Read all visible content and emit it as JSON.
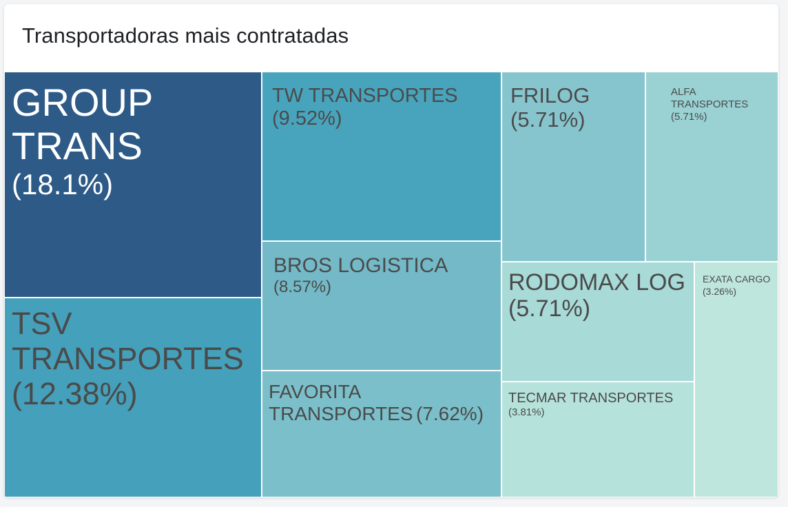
{
  "card": {
    "title": "Transportadoras mais contratadas"
  },
  "chart_data": {
    "type": "treemap",
    "title": "Transportadoras mais contratadas",
    "unit": "%",
    "items": [
      {
        "name": "GROUP TRANS",
        "percent_label": "(18.1%)",
        "value": 18.1,
        "color": "#2d5a87",
        "text_color": "#ffffff"
      },
      {
        "name": "TSV TRANSPORTES",
        "percent_label": "(12.38%)",
        "value": 12.38,
        "color": "#45a0bb",
        "text_color": "#4a4a4a"
      },
      {
        "name": "TW TRANSPORTES",
        "percent_label": "(9.52%)",
        "value": 9.52,
        "color": "#48a4bd",
        "text_color": "#4a4a4a"
      },
      {
        "name": "BROS LOGISTICA",
        "percent_label": "(8.57%)",
        "value": 8.57,
        "color": "#73b9c7",
        "text_color": "#4a4a4a"
      },
      {
        "name": "FAVORITA TRANSPORTES",
        "percent_label": "(7.62%)",
        "value": 7.62,
        "color": "#7bbfca",
        "text_color": "#4a4a4a"
      },
      {
        "name": "FRILOG",
        "percent_label": "(5.71%)",
        "value": 5.71,
        "color": "#87c5ce",
        "text_color": "#4a4a4a"
      },
      {
        "name": "ALFA TRANSPORTES",
        "percent_label": "(5.71%)",
        "value": 5.71,
        "color": "#9ad1d3",
        "text_color": "#4a4a4a"
      },
      {
        "name": "RODOMAX LOG",
        "percent_label": "(5.71%)",
        "value": 5.71,
        "color": "#a8dad7",
        "text_color": "#4a4a4a"
      },
      {
        "name": "TECMAR TRANSPORTES",
        "percent_label": "(3.81%)",
        "value": 3.81,
        "color": "#b5e2db",
        "text_color": "#4a4a4a"
      },
      {
        "name": "EXATA CARGO",
        "percent_label": "(3.26%)",
        "value": 3.26,
        "color": "#bee6dd",
        "text_color": "#4a4a4a"
      }
    ]
  }
}
